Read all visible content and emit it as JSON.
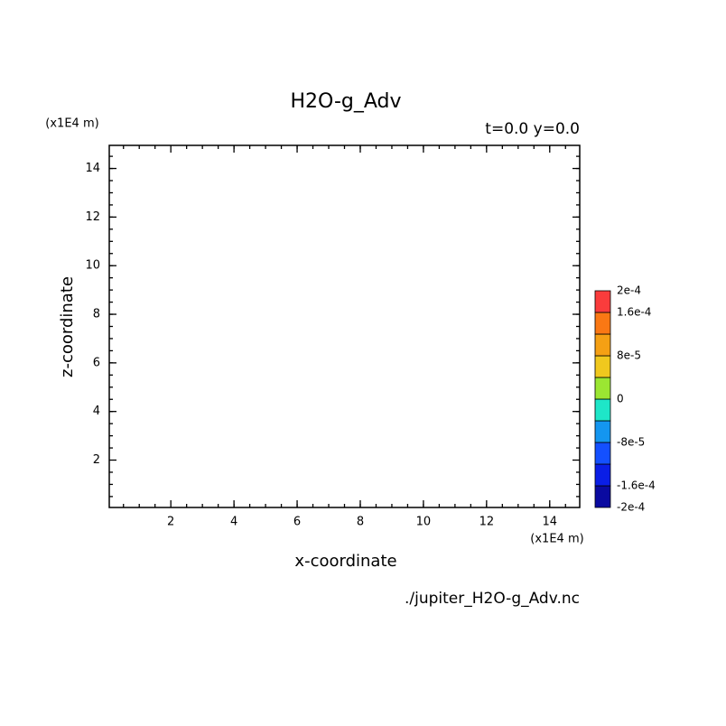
{
  "chart_data": {
    "type": "contour",
    "title": "H2O-g_Adv",
    "subtitle": "t=0.0 y=0.0",
    "x_label": "x-coordinate",
    "y_label": "z-coordinate",
    "x_unit": "(x1E4 m)",
    "y_unit": "(x1E4 m)",
    "source": "./jupiter_H2O-g_Adv.nc",
    "xlim": [
      0.05,
      14.95
    ],
    "ylim": [
      0.05,
      14.95
    ],
    "xticks": [
      2,
      4,
      6,
      8,
      10,
      12,
      14
    ],
    "yticks": [
      2,
      4,
      6,
      8,
      10,
      12,
      14
    ],
    "colorbar": {
      "bounds": [
        -0.0002,
        -0.00016,
        -0.00012,
        -8e-05,
        -4e-05,
        0,
        4e-05,
        8e-05,
        0.00012,
        0.00016,
        0.0002
      ],
      "colors": [
        "#0a0aa0",
        "#0a1ee6",
        "#1450ff",
        "#1496f0",
        "#1ee6c8",
        "#9be632",
        "#f0c81e",
        "#f5a014",
        "#fa7814",
        "#fa3c3c"
      ],
      "ticks": [
        {
          "value": 0.0002,
          "label": "2e-4"
        },
        {
          "value": 0.00016,
          "label": "1.6e-4"
        },
        {
          "value": 8e-05,
          "label": "8e-5"
        },
        0,
        {
          "value": -8e-05,
          "label": "-8e-5"
        },
        {
          "value": -0.00016,
          "label": "-1.6e-4"
        },
        {
          "value": -0.0002,
          "label": "-2e-4"
        }
      ]
    }
  }
}
